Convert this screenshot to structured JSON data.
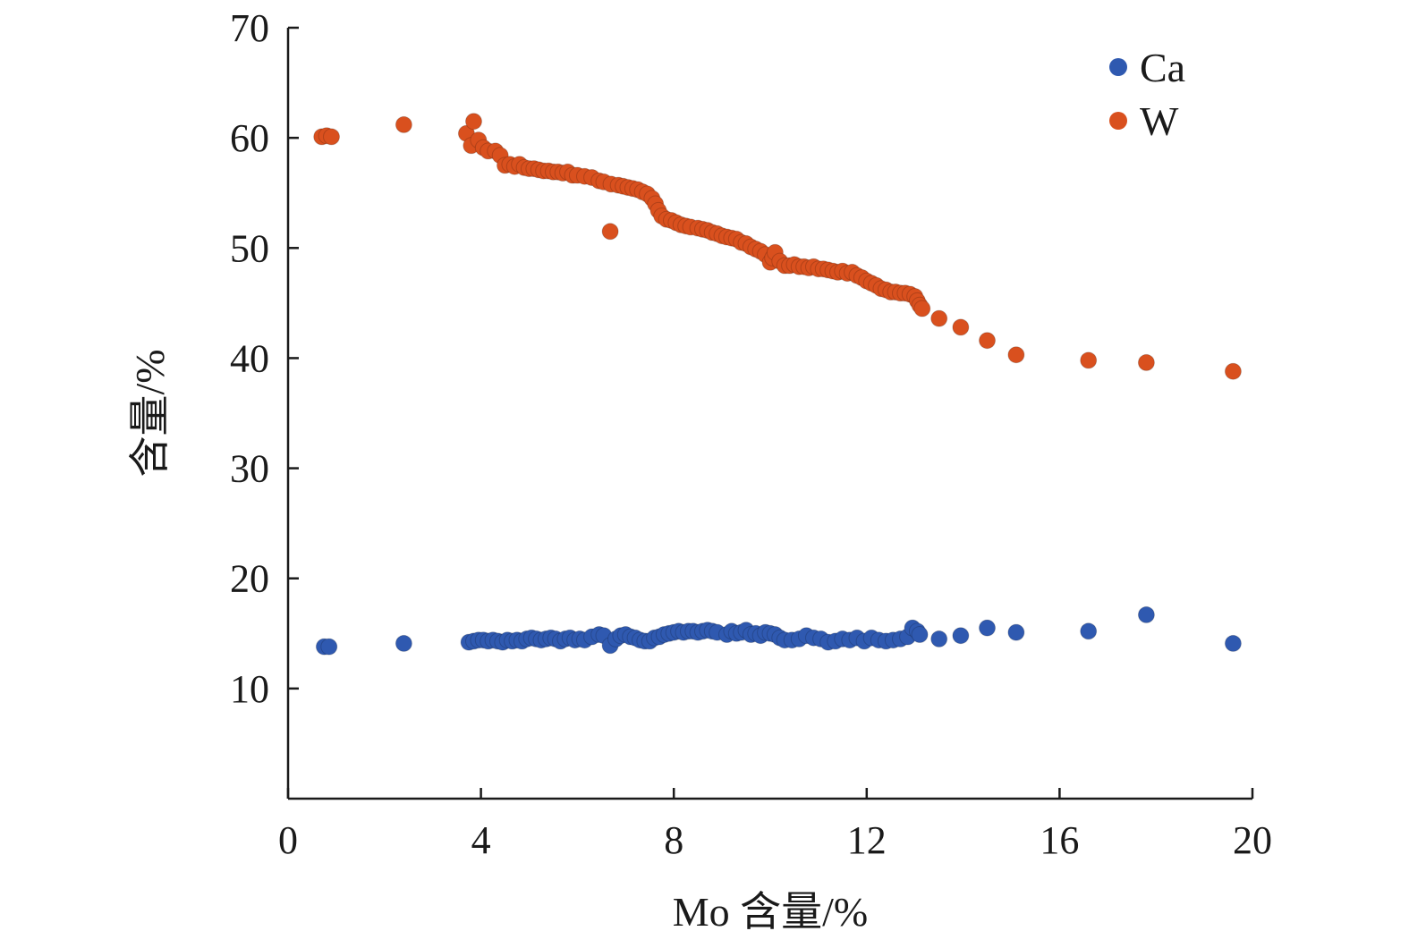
{
  "chart_data": {
    "type": "scatter",
    "title": "",
    "xlabel": "Mo 含量/%",
    "ylabel": "含量/%",
    "xlim": [
      0,
      20
    ],
    "ylim": [
      0,
      70
    ],
    "xticks": [
      "0",
      "4",
      "8",
      "12",
      "16",
      "20"
    ],
    "yticks": [
      "10",
      "20",
      "30",
      "40",
      "50",
      "60",
      "70"
    ],
    "grid": false,
    "legend_position": "top-right",
    "series": [
      {
        "name": "Ca",
        "color": "#2f59b0",
        "points": [
          [
            0.75,
            13.8
          ],
          [
            0.85,
            13.8
          ],
          [
            2.4,
            14.1
          ],
          [
            3.75,
            14.2
          ],
          [
            3.85,
            14.3
          ],
          [
            3.95,
            14.4
          ],
          [
            4.05,
            14.4
          ],
          [
            4.15,
            14.3
          ],
          [
            4.25,
            14.4
          ],
          [
            4.35,
            14.3
          ],
          [
            4.45,
            14.2
          ],
          [
            4.55,
            14.4
          ],
          [
            4.65,
            14.3
          ],
          [
            4.75,
            14.4
          ],
          [
            4.85,
            14.3
          ],
          [
            4.95,
            14.5
          ],
          [
            5.05,
            14.6
          ],
          [
            5.15,
            14.5
          ],
          [
            5.25,
            14.4
          ],
          [
            5.35,
            14.5
          ],
          [
            5.45,
            14.6
          ],
          [
            5.55,
            14.5
          ],
          [
            5.65,
            14.3
          ],
          [
            5.75,
            14.5
          ],
          [
            5.85,
            14.6
          ],
          [
            5.95,
            14.4
          ],
          [
            6.05,
            14.5
          ],
          [
            6.15,
            14.4
          ],
          [
            6.3,
            14.7
          ],
          [
            6.45,
            14.9
          ],
          [
            6.55,
            14.8
          ],
          [
            6.68,
            13.9
          ],
          [
            6.8,
            14.5
          ],
          [
            6.9,
            14.8
          ],
          [
            7.0,
            14.9
          ],
          [
            7.1,
            14.7
          ],
          [
            7.2,
            14.6
          ],
          [
            7.3,
            14.4
          ],
          [
            7.4,
            14.3
          ],
          [
            7.5,
            14.3
          ],
          [
            7.6,
            14.6
          ],
          [
            7.7,
            14.7
          ],
          [
            7.8,
            14.9
          ],
          [
            7.9,
            15.0
          ],
          [
            8.0,
            15.1
          ],
          [
            8.1,
            15.2
          ],
          [
            8.2,
            15.1
          ],
          [
            8.3,
            15.2
          ],
          [
            8.4,
            15.2
          ],
          [
            8.5,
            15.1
          ],
          [
            8.6,
            15.2
          ],
          [
            8.7,
            15.3
          ],
          [
            8.8,
            15.2
          ],
          [
            8.9,
            15.1
          ],
          [
            9.1,
            14.9
          ],
          [
            9.2,
            15.2
          ],
          [
            9.3,
            15.0
          ],
          [
            9.4,
            15.1
          ],
          [
            9.5,
            15.3
          ],
          [
            9.6,
            14.9
          ],
          [
            9.7,
            15.0
          ],
          [
            9.8,
            14.8
          ],
          [
            9.9,
            15.1
          ],
          [
            10.0,
            15.0
          ],
          [
            10.1,
            14.9
          ],
          [
            10.2,
            14.6
          ],
          [
            10.3,
            14.4
          ],
          [
            10.45,
            14.4
          ],
          [
            10.6,
            14.5
          ],
          [
            10.75,
            14.8
          ],
          [
            10.9,
            14.6
          ],
          [
            11.05,
            14.5
          ],
          [
            11.2,
            14.2
          ],
          [
            11.35,
            14.3
          ],
          [
            11.5,
            14.5
          ],
          [
            11.65,
            14.4
          ],
          [
            11.8,
            14.6
          ],
          [
            11.95,
            14.3
          ],
          [
            12.1,
            14.6
          ],
          [
            12.25,
            14.4
          ],
          [
            12.4,
            14.3
          ],
          [
            12.55,
            14.4
          ],
          [
            12.7,
            14.5
          ],
          [
            12.85,
            14.7
          ],
          [
            12.95,
            15.5
          ],
          [
            13.05,
            15.2
          ],
          [
            13.1,
            14.9
          ],
          [
            13.5,
            14.5
          ],
          [
            13.95,
            14.8
          ],
          [
            14.5,
            15.5
          ],
          [
            15.1,
            15.1
          ],
          [
            16.6,
            15.2
          ],
          [
            17.8,
            16.7
          ],
          [
            19.6,
            14.1
          ]
        ]
      },
      {
        "name": "W",
        "color": "#d9501e",
        "points": [
          [
            0.7,
            60.1
          ],
          [
            0.8,
            60.2
          ],
          [
            0.9,
            60.1
          ],
          [
            2.4,
            61.2
          ],
          [
            3.7,
            60.4
          ],
          [
            3.8,
            59.3
          ],
          [
            3.85,
            61.5
          ],
          [
            3.95,
            59.8
          ],
          [
            4.05,
            59.1
          ],
          [
            4.15,
            58.8
          ],
          [
            4.3,
            58.8
          ],
          [
            4.4,
            58.4
          ],
          [
            4.5,
            57.5
          ],
          [
            4.6,
            57.6
          ],
          [
            4.7,
            57.4
          ],
          [
            4.8,
            57.6
          ],
          [
            4.9,
            57.3
          ],
          [
            5.0,
            57.2
          ],
          [
            5.1,
            57.2
          ],
          [
            5.2,
            57.1
          ],
          [
            5.3,
            57.0
          ],
          [
            5.4,
            57.0
          ],
          [
            5.5,
            56.9
          ],
          [
            5.6,
            56.9
          ],
          [
            5.7,
            56.8
          ],
          [
            5.8,
            56.9
          ],
          [
            5.9,
            56.6
          ],
          [
            6.0,
            56.6
          ],
          [
            6.15,
            56.5
          ],
          [
            6.3,
            56.4
          ],
          [
            6.45,
            56.1
          ],
          [
            6.55,
            56.0
          ],
          [
            6.68,
            51.5
          ],
          [
            6.7,
            55.8
          ],
          [
            6.85,
            55.7
          ],
          [
            6.95,
            55.6
          ],
          [
            7.05,
            55.5
          ],
          [
            7.15,
            55.4
          ],
          [
            7.25,
            55.3
          ],
          [
            7.35,
            55.1
          ],
          [
            7.45,
            54.9
          ],
          [
            7.55,
            54.5
          ],
          [
            7.62,
            54.0
          ],
          [
            7.68,
            53.4
          ],
          [
            7.75,
            52.9
          ],
          [
            7.85,
            52.6
          ],
          [
            7.95,
            52.5
          ],
          [
            8.05,
            52.3
          ],
          [
            8.15,
            52.1
          ],
          [
            8.25,
            52.0
          ],
          [
            8.35,
            51.9
          ],
          [
            8.5,
            51.8
          ],
          [
            8.6,
            51.7
          ],
          [
            8.7,
            51.6
          ],
          [
            8.8,
            51.4
          ],
          [
            8.9,
            51.3
          ],
          [
            9.0,
            51.1
          ],
          [
            9.1,
            51.0
          ],
          [
            9.2,
            50.9
          ],
          [
            9.3,
            50.8
          ],
          [
            9.4,
            50.5
          ],
          [
            9.5,
            50.4
          ],
          [
            9.6,
            50.1
          ],
          [
            9.7,
            49.9
          ],
          [
            9.8,
            49.7
          ],
          [
            9.9,
            49.4
          ],
          [
            10.0,
            48.7
          ],
          [
            10.05,
            49.1
          ],
          [
            10.1,
            49.6
          ],
          [
            10.2,
            48.8
          ],
          [
            10.3,
            48.4
          ],
          [
            10.4,
            48.4
          ],
          [
            10.5,
            48.5
          ],
          [
            10.6,
            48.3
          ],
          [
            10.7,
            48.3
          ],
          [
            10.8,
            48.2
          ],
          [
            10.9,
            48.3
          ],
          [
            11.0,
            48.1
          ],
          [
            11.1,
            48.1
          ],
          [
            11.2,
            48.0
          ],
          [
            11.3,
            47.9
          ],
          [
            11.4,
            47.8
          ],
          [
            11.5,
            47.9
          ],
          [
            11.6,
            47.7
          ],
          [
            11.7,
            47.8
          ],
          [
            11.8,
            47.5
          ],
          [
            11.9,
            47.3
          ],
          [
            12.0,
            47.0
          ],
          [
            12.1,
            46.8
          ],
          [
            12.2,
            46.6
          ],
          [
            12.3,
            46.3
          ],
          [
            12.4,
            46.2
          ],
          [
            12.5,
            46.0
          ],
          [
            12.6,
            46.0
          ],
          [
            12.7,
            45.9
          ],
          [
            12.8,
            45.9
          ],
          [
            12.9,
            45.8
          ],
          [
            13.0,
            45.6
          ],
          [
            13.05,
            45.2
          ],
          [
            13.1,
            44.8
          ],
          [
            13.15,
            44.5
          ],
          [
            13.5,
            43.6
          ],
          [
            13.95,
            42.8
          ],
          [
            14.5,
            41.6
          ],
          [
            15.1,
            40.3
          ],
          [
            16.6,
            39.8
          ],
          [
            17.8,
            39.6
          ],
          [
            19.6,
            38.8
          ]
        ]
      }
    ]
  }
}
